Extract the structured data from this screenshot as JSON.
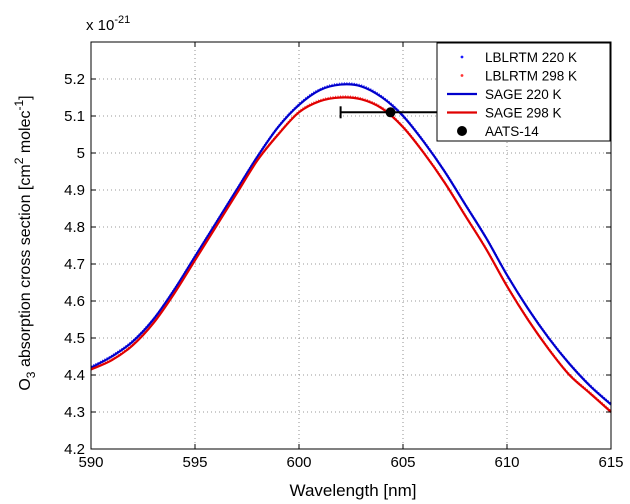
{
  "chart_data": {
    "type": "line",
    "title": "",
    "xlabel": "Wavelength [nm]",
    "ylabel": {
      "prefix": "O",
      "sub": "3",
      "main": " absorption cross section [cm",
      "sup1": "2",
      "mid": " molec",
      "sup2": "-1",
      "end": "]"
    },
    "y_multiplier": {
      "base": "x 10",
      "exp": "-21"
    },
    "xlim": [
      590,
      615
    ],
    "ylim": [
      4.2,
      5.3
    ],
    "xticks": [
      590,
      595,
      600,
      605,
      610,
      615
    ],
    "yticks": [
      4.2,
      4.3,
      4.4,
      4.5,
      4.6,
      4.7,
      4.8,
      4.9,
      5.0,
      5.1,
      5.2
    ],
    "ytick_labels": [
      "4.2",
      "4.3",
      "4.4",
      "4.5",
      "4.6",
      "4.7",
      "4.8",
      "4.9",
      "5",
      "5.1",
      "5.2"
    ],
    "grid": true,
    "legend_position": "top-right",
    "series": [
      {
        "name": "LBLRTM 220 K",
        "style": "dots",
        "color": "#1a1aff",
        "x": [
          590,
          591,
          592,
          593,
          594,
          595,
          596,
          597,
          598,
          599,
          600,
          601,
          602,
          603,
          604,
          605,
          606,
          607,
          608,
          609,
          610,
          611,
          612,
          613,
          614,
          615
        ],
        "y": [
          4.42,
          4.45,
          4.49,
          4.55,
          4.63,
          4.72,
          4.81,
          4.9,
          4.99,
          5.07,
          5.13,
          5.17,
          5.185,
          5.18,
          5.15,
          5.1,
          5.03,
          4.95,
          4.86,
          4.77,
          4.67,
          4.58,
          4.5,
          4.43,
          4.37,
          4.32
        ]
      },
      {
        "name": "LBLRTM 298 K",
        "style": "dots",
        "color": "#ff3333",
        "x": [
          590,
          591,
          592,
          593,
          594,
          595,
          596,
          597,
          598,
          599,
          600,
          601,
          602,
          603,
          604,
          605,
          606,
          607,
          608,
          609,
          610,
          611,
          612,
          613,
          614,
          615
        ],
        "y": [
          4.415,
          4.44,
          4.48,
          4.54,
          4.62,
          4.71,
          4.8,
          4.89,
          4.98,
          5.05,
          5.11,
          5.14,
          5.15,
          5.145,
          5.12,
          5.07,
          5.0,
          4.92,
          4.83,
          4.74,
          4.64,
          4.55,
          4.47,
          4.4,
          4.35,
          4.3
        ]
      },
      {
        "name": "SAGE  220 K",
        "style": "line",
        "color": "#0000cc",
        "x": [
          590,
          591,
          592,
          593,
          594,
          595,
          596,
          597,
          598,
          599,
          600,
          601,
          602,
          603,
          604,
          605,
          606,
          607,
          608,
          609,
          610,
          611,
          612,
          613,
          614,
          615
        ],
        "y": [
          4.42,
          4.45,
          4.49,
          4.55,
          4.63,
          4.72,
          4.81,
          4.9,
          4.99,
          5.07,
          5.13,
          5.17,
          5.185,
          5.18,
          5.15,
          5.1,
          5.03,
          4.95,
          4.86,
          4.77,
          4.67,
          4.58,
          4.5,
          4.43,
          4.37,
          4.32
        ]
      },
      {
        "name": "SAGE  298 K",
        "style": "line",
        "color": "#e00000",
        "x": [
          590,
          591,
          592,
          593,
          594,
          595,
          596,
          597,
          598,
          599,
          600,
          601,
          602,
          603,
          604,
          605,
          606,
          607,
          608,
          609,
          610,
          611,
          612,
          613,
          614,
          615
        ],
        "y": [
          4.415,
          4.44,
          4.48,
          4.54,
          4.62,
          4.71,
          4.8,
          4.89,
          4.98,
          5.05,
          5.11,
          5.14,
          5.15,
          5.145,
          5.12,
          5.07,
          5.0,
          4.92,
          4.83,
          4.74,
          4.64,
          4.55,
          4.47,
          4.4,
          4.35,
          4.3
        ]
      },
      {
        "name": "AATS-14",
        "style": "marker",
        "color": "#000000",
        "x": [
          604.4
        ],
        "y": [
          5.11
        ],
        "xerr": [
          [
            602.0,
            606.9
          ]
        ]
      }
    ]
  }
}
